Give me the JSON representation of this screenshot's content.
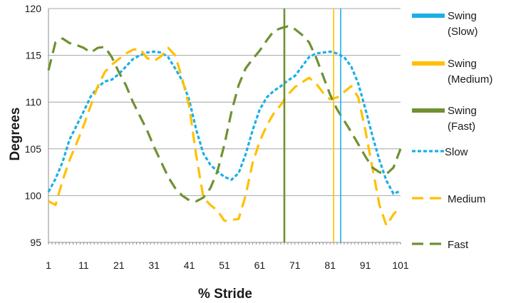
{
  "chart_data": {
    "type": "line",
    "title": "",
    "xlabel": "% Stride",
    "ylabel": "Degrees",
    "xlim": [
      1,
      101
    ],
    "ylim": [
      95,
      120
    ],
    "x_ticks": [
      1,
      11,
      21,
      31,
      41,
      51,
      61,
      71,
      81,
      91,
      101
    ],
    "y_ticks": [
      95,
      100,
      105,
      110,
      115,
      120
    ],
    "grid": "horizontal",
    "legend_position": "right",
    "x": [
      1,
      3,
      5,
      7,
      9,
      11,
      13,
      15,
      17,
      19,
      21,
      23,
      25,
      27,
      29,
      31,
      33,
      35,
      37,
      39,
      41,
      43,
      45,
      47,
      49,
      51,
      53,
      55,
      57,
      59,
      61,
      63,
      65,
      67,
      69,
      71,
      73,
      75,
      77,
      79,
      81,
      83,
      85,
      87,
      89,
      91,
      93,
      95,
      97,
      99,
      101
    ],
    "swing_markers": [
      {
        "name": "Swing (Slow)",
        "x": 84,
        "color": "#1ab0e6"
      },
      {
        "name": "Swing (Medium)",
        "x": 82,
        "color": "#ffc000"
      },
      {
        "name": "Swing (Fast)",
        "x": 68,
        "color": "#6f9132"
      }
    ],
    "series": [
      {
        "name": "Slow",
        "color": "#1ab0e6",
        "dash": "short",
        "values": [
          100.4,
          101.8,
          103.6,
          106.0,
          107.5,
          109.0,
          110.6,
          111.6,
          112.2,
          112.4,
          113.0,
          113.8,
          114.6,
          115.0,
          115.3,
          115.4,
          115.3,
          114.8,
          113.6,
          112.3,
          110.2,
          107.0,
          104.5,
          103.3,
          102.6,
          102.0,
          101.7,
          102.4,
          104.4,
          107.0,
          109.2,
          110.5,
          111.2,
          111.7,
          112.3,
          112.8,
          113.8,
          114.8,
          115.2,
          115.3,
          115.4,
          115.2,
          114.8,
          113.8,
          112.0,
          109.3,
          106.4,
          103.8,
          101.6,
          100.2,
          100.5
        ]
      },
      {
        "name": "Medium",
        "color": "#ffc000",
        "dash": "long",
        "values": [
          99.4,
          99.0,
          101.6,
          103.8,
          105.6,
          107.5,
          109.6,
          111.7,
          113.2,
          114.0,
          114.6,
          115.2,
          115.6,
          115.7,
          114.7,
          114.4,
          114.9,
          115.8,
          115.0,
          112.5,
          109.5,
          104.2,
          99.8,
          99.0,
          98.4,
          97.3,
          97.4,
          97.5,
          100.0,
          103.5,
          105.8,
          107.5,
          108.8,
          109.7,
          110.8,
          111.6,
          112.1,
          112.6,
          112.0,
          111.0,
          110.3,
          110.5,
          111.1,
          111.7,
          110.5,
          107.0,
          103.0,
          99.0,
          96.8,
          98.0,
          98.8
        ]
      },
      {
        "name": "Fast",
        "color": "#6f9132",
        "dash": "long",
        "values": [
          113.4,
          116.4,
          116.8,
          116.3,
          116.1,
          115.8,
          115.3,
          115.8,
          115.9,
          114.8,
          113.2,
          111.8,
          110.0,
          108.5,
          107.0,
          105.2,
          103.6,
          102.0,
          100.8,
          100.0,
          99.5,
          99.4,
          99.8,
          100.8,
          102.6,
          105.5,
          109.0,
          111.8,
          113.6,
          114.6,
          115.5,
          116.6,
          117.6,
          117.9,
          118.1,
          117.8,
          117.2,
          116.4,
          114.8,
          112.8,
          110.8,
          109.2,
          108.0,
          106.8,
          105.5,
          104.2,
          103.0,
          102.5,
          102.3,
          103.0,
          105.0
        ]
      }
    ],
    "legend": [
      {
        "label": "Swing",
        "sublabel": "(Slow)",
        "kind": "box",
        "color": "#1ab0e6"
      },
      {
        "label": "Swing",
        "sublabel": "(Medium)",
        "kind": "box",
        "color": "#ffc000"
      },
      {
        "label": "Swing",
        "sublabel": "(Fast)",
        "kind": "box",
        "color": "#6f9132"
      },
      {
        "label": "Slow",
        "sublabel": "",
        "kind": "short-dash",
        "color": "#1ab0e6"
      },
      {
        "label": "Medium",
        "sublabel": "",
        "kind": "long-dash",
        "color": "#ffc000"
      },
      {
        "label": "Fast",
        "sublabel": "",
        "kind": "long-dash",
        "color": "#6f9132"
      }
    ]
  }
}
